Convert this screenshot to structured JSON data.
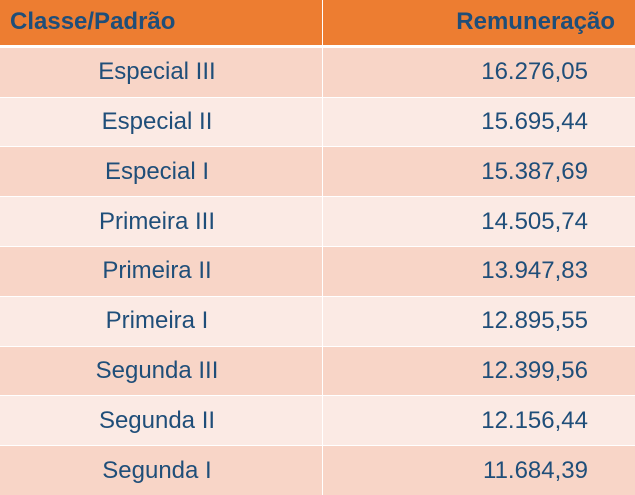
{
  "table": {
    "headers": [
      "Classe/Padrão",
      "Remuneração"
    ],
    "rows": [
      [
        "Especial III",
        "16.276,05"
      ],
      [
        "Especial II",
        "15.695,44"
      ],
      [
        "Especial I",
        "15.387,69"
      ],
      [
        "Primeira III",
        "14.505,74"
      ],
      [
        "Primeira II",
        "13.947,83"
      ],
      [
        "Primeira I",
        "12.895,55"
      ],
      [
        "Segunda III",
        "12.399,56"
      ],
      [
        "Segunda II",
        "12.156,44"
      ],
      [
        "Segunda I",
        "11.684,39"
      ]
    ]
  },
  "colors": {
    "header_bg": "#ED7D31",
    "text": "#1F4E79",
    "row_dark": "#F8D5C7",
    "row_light": "#FBEAE4"
  }
}
